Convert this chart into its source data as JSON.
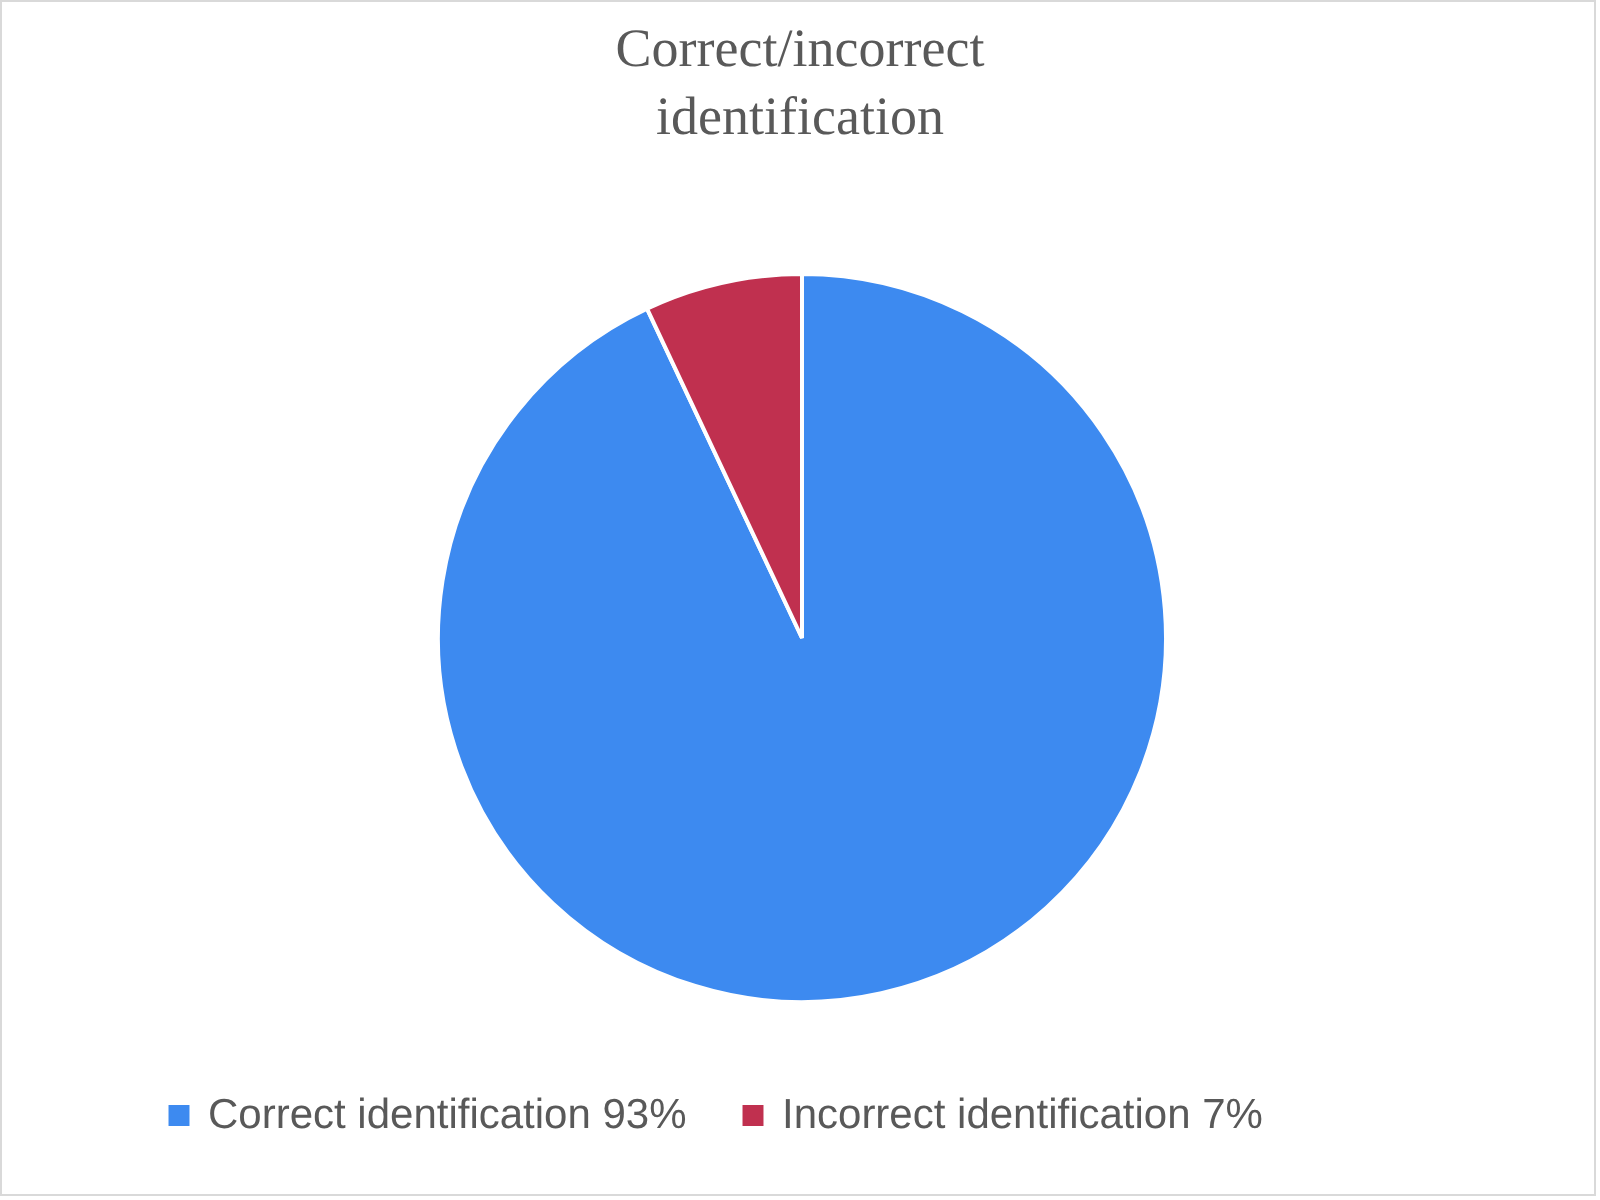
{
  "chart_data": {
    "type": "pie",
    "title": "Correct/incorrect identification",
    "categories": [
      "Correct identification 93%",
      "Incorrect identification 7%"
    ],
    "values": [
      93,
      7
    ],
    "colors": [
      "#3d8af0",
      "#c0304f"
    ],
    "legend": "bottom"
  }
}
